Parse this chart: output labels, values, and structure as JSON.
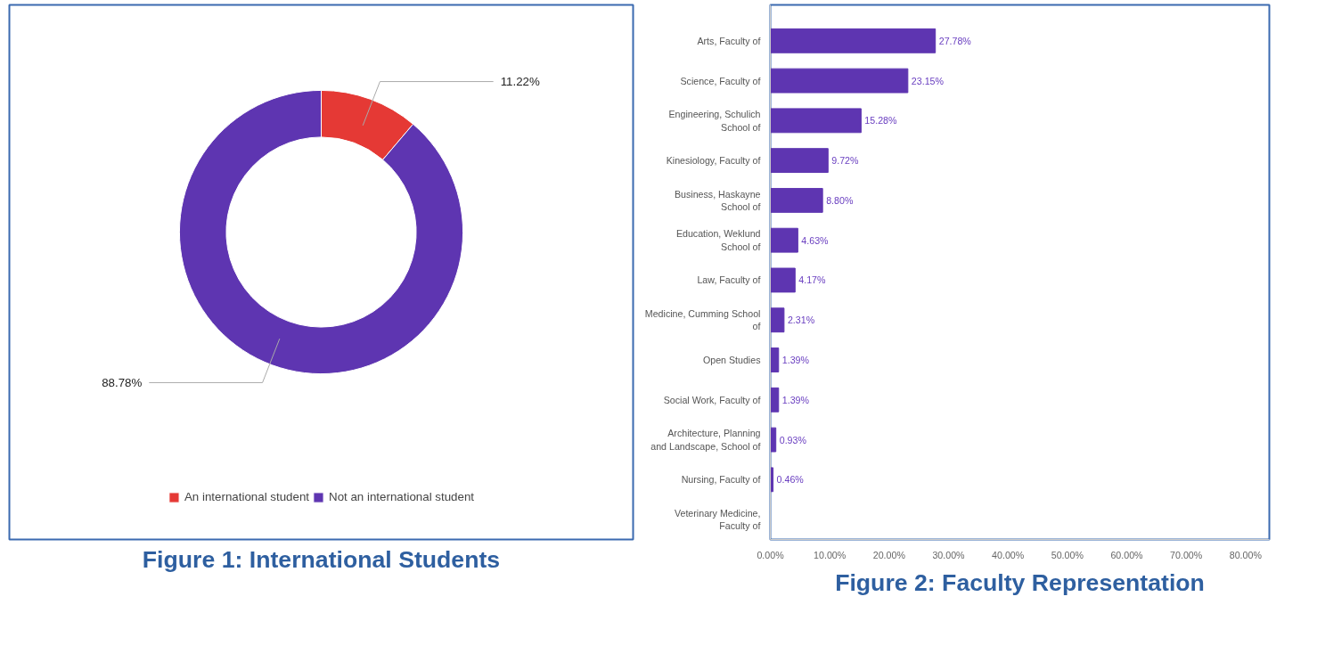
{
  "chart_data": [
    {
      "type": "donut",
      "title": "Figure 1: International Students",
      "categories": [
        "An international student",
        "Not an international student"
      ],
      "values": [
        11.22,
        88.78
      ],
      "colors": [
        "#e53935",
        "#5e35b1"
      ],
      "value_labels": [
        "11.22%",
        "88.78%"
      ],
      "legend": "bottom"
    },
    {
      "type": "bar",
      "orientation": "horizontal",
      "title": "Figure 2: Faculty Representation",
      "categories": [
        "Arts, Faculty of",
        "Science, Faculty of",
        "Engineering, Schulich School of",
        "Kinesiology, Faculty of",
        "Business, Haskayne School of",
        "Education, Weklund School of",
        "Law, Faculty of",
        "Medicine, Cumming School of",
        "Open Studies",
        "Social Work, Faculty of",
        "Architecture, Planning and Landscape, School of",
        "Nursing, Faculty of",
        "Veterinary Medicine, Faculty of"
      ],
      "values": [
        27.78,
        23.15,
        15.28,
        9.72,
        8.8,
        4.63,
        4.17,
        2.31,
        1.39,
        1.39,
        0.93,
        0.46,
        0
      ],
      "value_labels": [
        "27.78%",
        "23.15%",
        "15.28%",
        "9.72%",
        "8.80%",
        "4.63%",
        "4.17%",
        "2.31%",
        "1.39%",
        "1.39%",
        "0.93%",
        "0.46%",
        null
      ],
      "color": "#5e35b1",
      "xlim": [
        0,
        84
      ],
      "xticks": [
        {
          "value": 0,
          "label": "0.00%"
        },
        {
          "value": 10,
          "label": "10.00%"
        },
        {
          "value": 20,
          "label": "20.00%"
        },
        {
          "value": 30,
          "label": "30.00%"
        },
        {
          "value": 40,
          "label": "40.00%"
        },
        {
          "value": 50,
          "label": "50.00%"
        },
        {
          "value": 60,
          "label": "60.00%"
        },
        {
          "value": 70,
          "label": "70.00%"
        },
        {
          "value": 80,
          "label": "80.00%"
        }
      ],
      "grid": false
    }
  ]
}
